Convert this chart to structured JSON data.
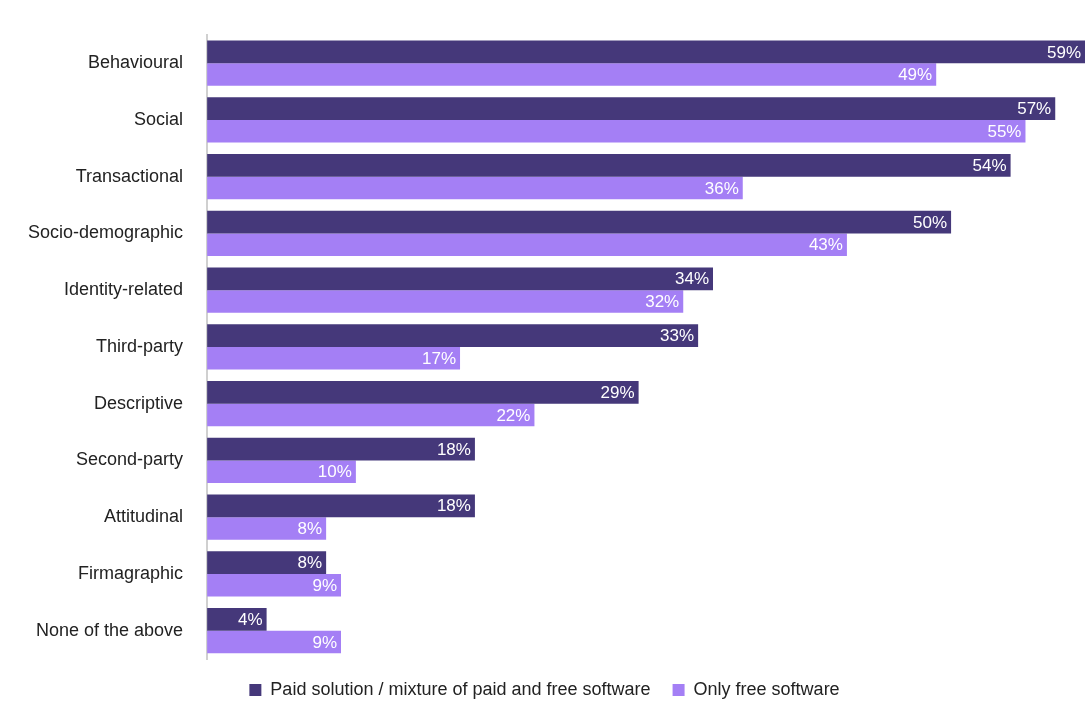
{
  "chart_data": {
    "type": "bar",
    "orientation": "horizontal",
    "categories": [
      "Behavioural",
      "Social",
      "Transactional",
      "Socio-demographic",
      "Identity-related",
      "Third-party",
      "Descriptive",
      "Second-party",
      "Attitudinal",
      "Firmagraphic",
      "None of the above"
    ],
    "series": [
      {
        "name": "Paid solution / mixture of paid and free software",
        "color": "#45387a",
        "values": [
          59,
          57,
          54,
          50,
          34,
          33,
          29,
          18,
          18,
          8,
          4
        ],
        "value_labels": [
          "59%",
          "57%",
          "54%",
          "50%",
          "34%",
          "33%",
          "29%",
          "18%",
          "18%",
          "8%",
          "4%"
        ]
      },
      {
        "name": "Only free software",
        "color": "#a47ff5",
        "values": [
          49,
          55,
          36,
          43,
          32,
          17,
          22,
          10,
          8,
          9,
          9
        ],
        "value_labels": [
          "49%",
          "55%",
          "36%",
          "43%",
          "32%",
          "17%",
          "22%",
          "10%",
          "8%",
          "9%",
          "9%"
        ]
      }
    ],
    "legend": "bottom"
  }
}
